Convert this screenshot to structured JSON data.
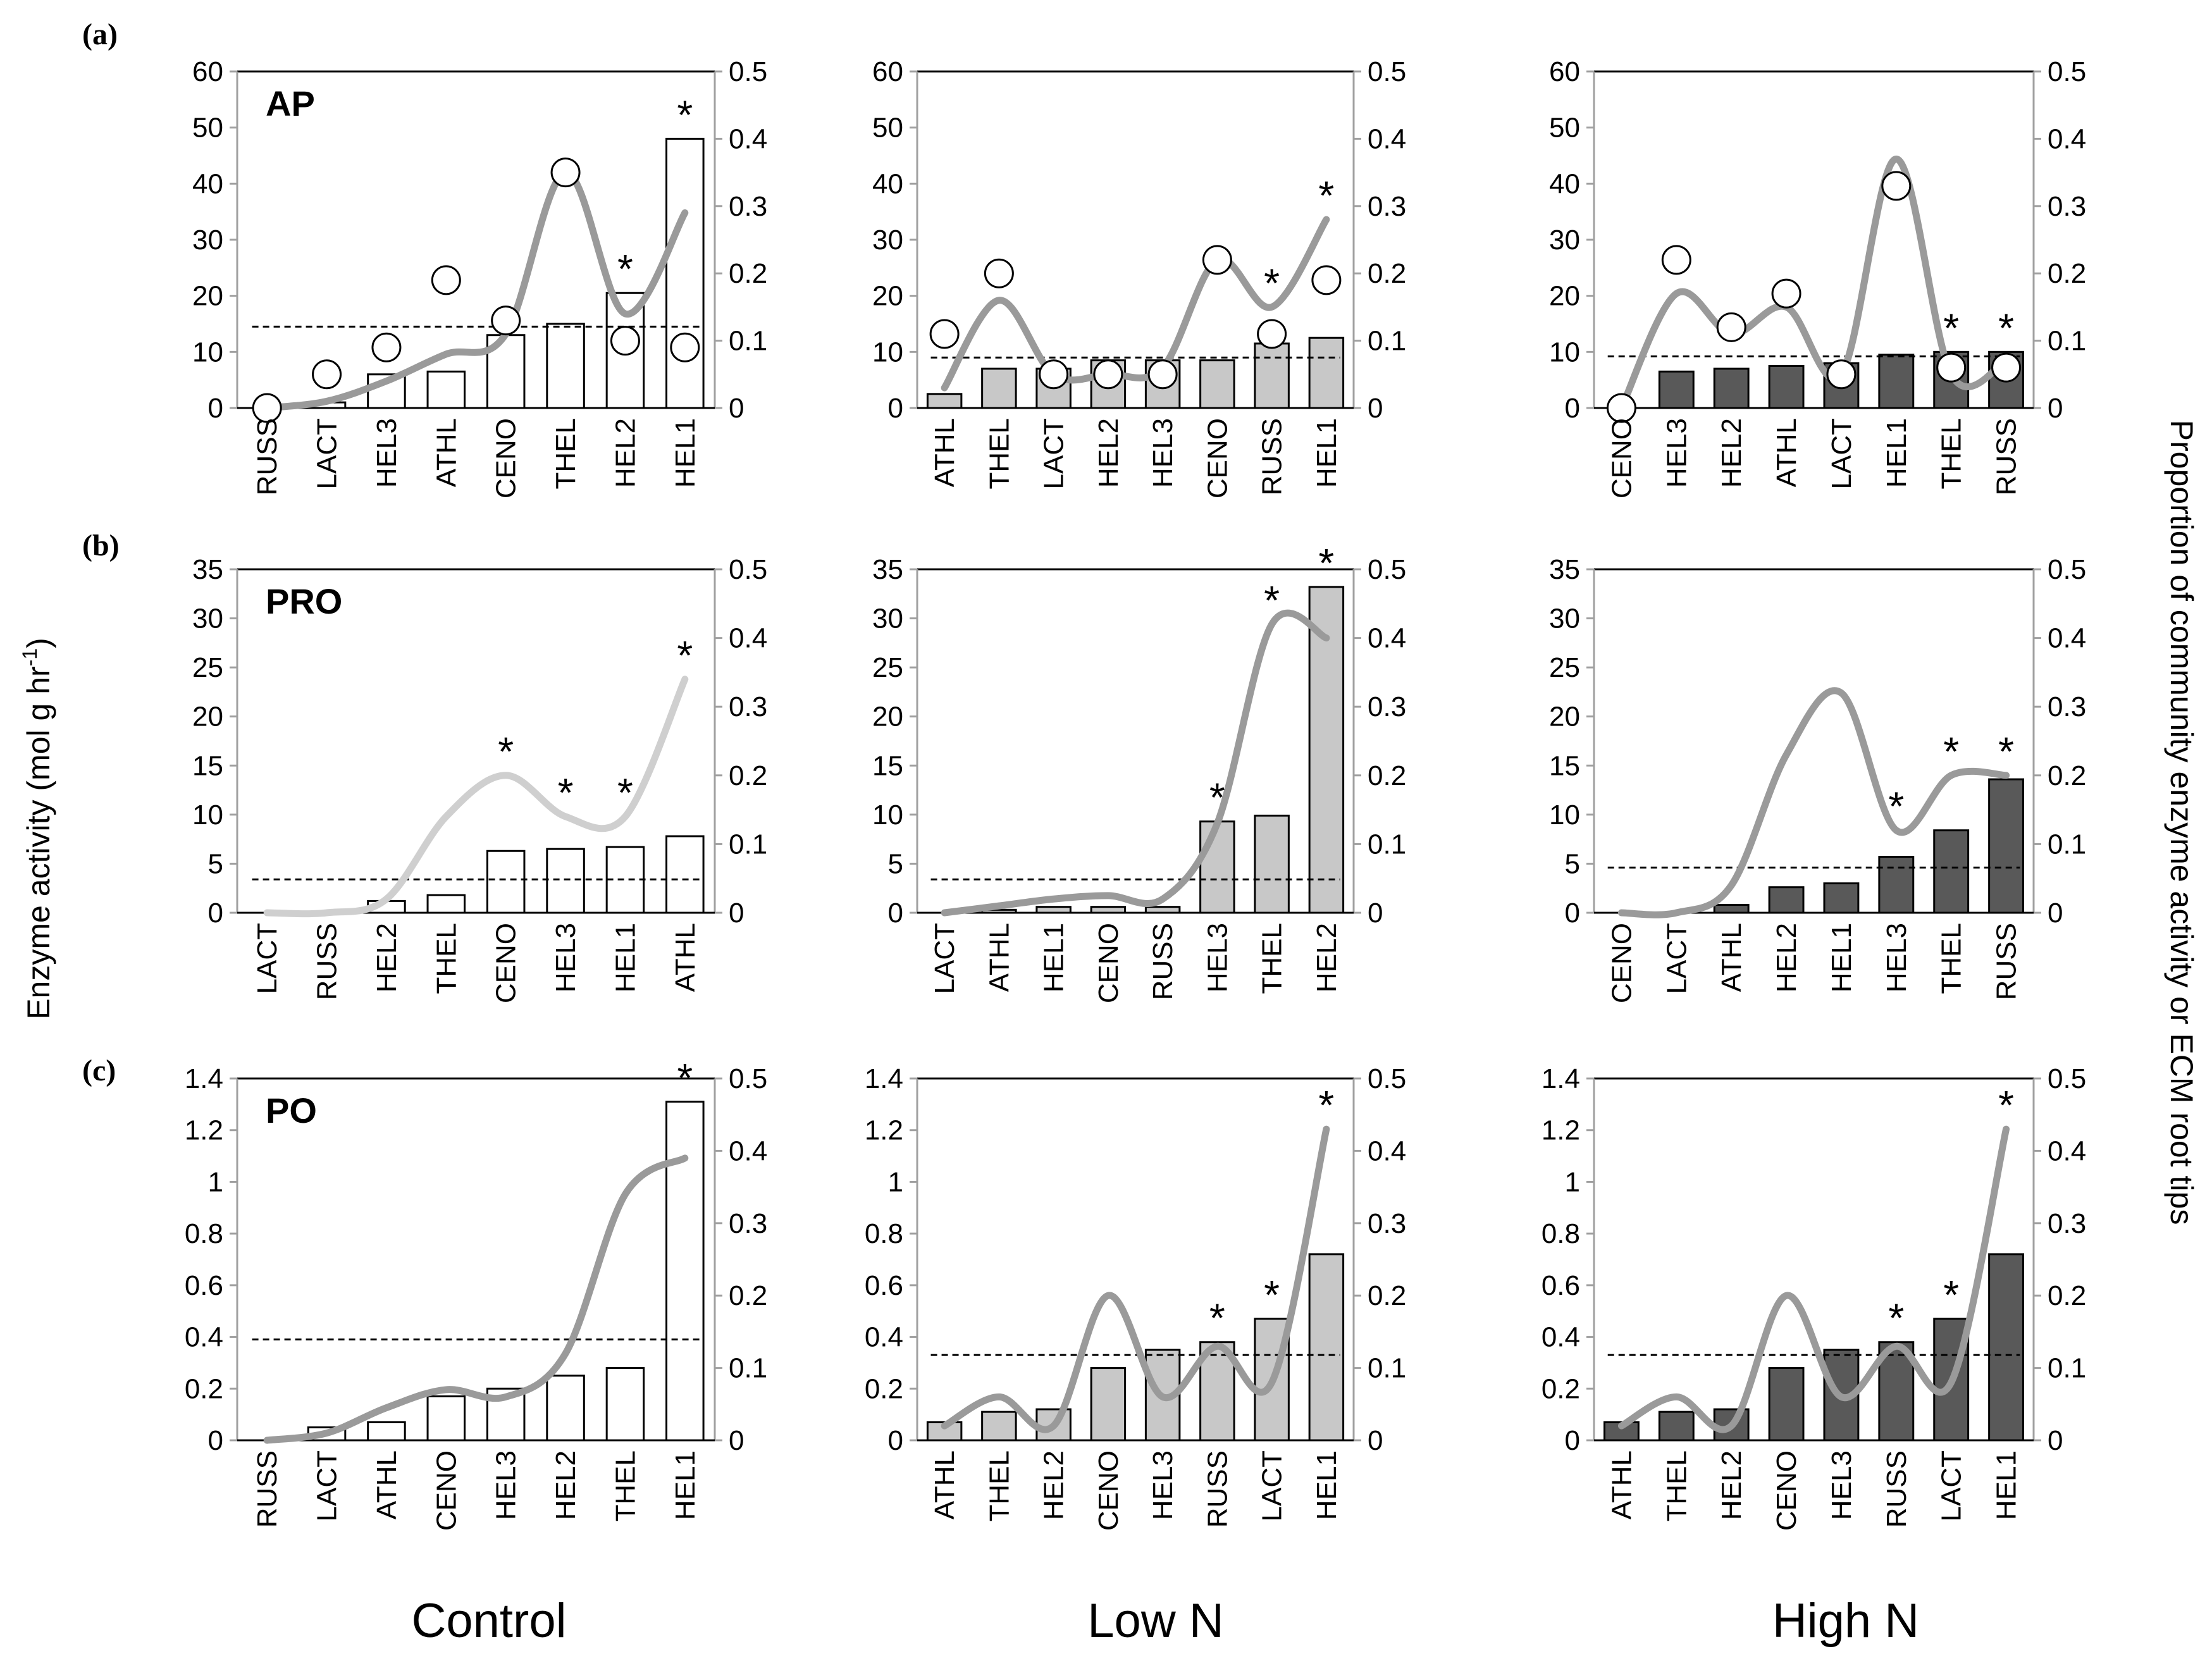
{
  "figure": {
    "y_left_label": "Enzyme activity (mol g hr",
    "y_left_label_sup": "-1",
    "y_left_label_end": ")",
    "y_right_label": "Proportion of community enzyme activity or ECM root tips",
    "columns": [
      "Control",
      "Low N",
      "High N"
    ],
    "row_labels": [
      "(a)",
      "(b)",
      "(c)"
    ],
    "significance_marker": "*"
  },
  "colors": {
    "control_bar": "#ffffff",
    "lowN_bar": "#c8c8c8",
    "highN_bar": "#595959",
    "curve": "#9a9a9a",
    "curve_light": "#cfcfcf",
    "text": "#000000"
  },
  "chart_data": [
    {
      "id": "AP-Control",
      "type": "bar",
      "enzyme_label": "AP",
      "treatment": "Control",
      "categories": [
        "RUSS",
        "LACT",
        "HEL3",
        "ATHL",
        "CENO",
        "THEL",
        "HEL2",
        "HEL1"
      ],
      "values": [
        0,
        1,
        6,
        6.5,
        13,
        15,
        20.5,
        48
      ],
      "significant": [
        false,
        false,
        false,
        false,
        false,
        false,
        true,
        true
      ],
      "ylim": [
        0,
        60
      ],
      "yticks": [
        0,
        10,
        20,
        30,
        40,
        50,
        60
      ],
      "y2lim": [
        0,
        0.5
      ],
      "y2ticks": [
        0,
        0.1,
        0.2,
        0.3,
        0.4,
        0.5
      ],
      "mean_line": 14.5,
      "proportion_curve": [
        0,
        0.01,
        0.04,
        0.08,
        0.11,
        0.35,
        0.14,
        0.29
      ],
      "root_tip_points": [
        0,
        0.05,
        0.09,
        0.19,
        0.13,
        0.35,
        0.1,
        0.09
      ]
    },
    {
      "id": "AP-LowN",
      "type": "bar",
      "enzyme_label": "",
      "treatment": "Low N",
      "categories": [
        "ATHL",
        "THEL",
        "LACT",
        "HEL2",
        "HEL3",
        "CENO",
        "RUSS",
        "HEL1"
      ],
      "values": [
        2.5,
        7,
        7,
        8.5,
        8.5,
        8.5,
        11.5,
        12.5
      ],
      "significant": [
        false,
        false,
        false,
        false,
        false,
        false,
        true,
        true
      ],
      "ylim": [
        0,
        60
      ],
      "yticks": [
        0,
        10,
        20,
        30,
        40,
        50,
        60
      ],
      "y2lim": [
        0,
        0.5
      ],
      "y2ticks": [
        0,
        0.1,
        0.2,
        0.3,
        0.4,
        0.5
      ],
      "mean_line": 9,
      "proportion_curve": [
        0.03,
        0.16,
        0.05,
        0.05,
        0.06,
        0.22,
        0.15,
        0.28
      ],
      "root_tip_points": [
        0.11,
        0.2,
        0.05,
        0.05,
        0.05,
        0.22,
        0.11,
        0.19
      ]
    },
    {
      "id": "AP-HighN",
      "type": "bar",
      "enzyme_label": "",
      "treatment": "High N",
      "categories": [
        "CENO",
        "HEL3",
        "HEL2",
        "ATHL",
        "LACT",
        "HEL1",
        "THEL",
        "RUSS"
      ],
      "values": [
        0,
        6.5,
        7,
        7.5,
        8,
        9.5,
        10,
        10
      ],
      "significant": [
        false,
        false,
        false,
        false,
        false,
        false,
        true,
        true
      ],
      "ylim": [
        0,
        60
      ],
      "yticks": [
        0,
        10,
        20,
        30,
        40,
        50,
        60
      ],
      "y2lim": [
        0,
        0.5
      ],
      "y2ticks": [
        0,
        0.1,
        0.2,
        0.3,
        0.4,
        0.5
      ],
      "mean_line": 9.2,
      "proportion_curve": [
        0,
        0.17,
        0.11,
        0.15,
        0.05,
        0.37,
        0.05,
        0.07
      ],
      "root_tip_points": [
        0,
        0.22,
        0.12,
        0.17,
        0.05,
        0.33,
        0.06,
        0.06
      ]
    },
    {
      "id": "PRO-Control",
      "type": "bar",
      "enzyme_label": "PRO",
      "treatment": "Control",
      "categories": [
        "LACT",
        "RUSS",
        "HEL2",
        "THEL",
        "CENO",
        "HEL3",
        "HEL1",
        "ATHL"
      ],
      "values": [
        0,
        0,
        1.2,
        1.8,
        6.3,
        6.5,
        6.7,
        7.8
      ],
      "significant": [
        false,
        false,
        false,
        false,
        true,
        true,
        true,
        true
      ],
      "ylim": [
        0,
        35
      ],
      "yticks": [
        0,
        5,
        10,
        15,
        20,
        25,
        30,
        35
      ],
      "y2lim": [
        0,
        0.5
      ],
      "y2ticks": [
        0,
        0.1,
        0.2,
        0.3,
        0.4,
        0.5
      ],
      "mean_line": 3.4,
      "proportion_curve": [
        0,
        0,
        0.02,
        0.14,
        0.2,
        0.14,
        0.14,
        0.34
      ],
      "root_tip_points": []
    },
    {
      "id": "PRO-LowN",
      "type": "bar",
      "enzyme_label": "",
      "treatment": "Low N",
      "categories": [
        "LACT",
        "ATHL",
        "HEL1",
        "CENO",
        "RUSS",
        "HEL3",
        "THEL",
        "HEL2"
      ],
      "values": [
        0,
        0.3,
        0.6,
        0.6,
        0.6,
        9.3,
        9.9,
        33.2
      ],
      "significant": [
        false,
        false,
        false,
        false,
        false,
        true,
        true,
        true
      ],
      "ylim": [
        0,
        35
      ],
      "yticks": [
        0,
        5,
        10,
        15,
        20,
        25,
        30,
        35
      ],
      "y2lim": [
        0,
        0.5
      ],
      "y2ticks": [
        0,
        0.1,
        0.2,
        0.3,
        0.4,
        0.5
      ],
      "mean_line": 3.4,
      "proportion_curve": [
        0,
        0.01,
        0.02,
        0.025,
        0.02,
        0.13,
        0.42,
        0.4
      ],
      "root_tip_points": []
    },
    {
      "id": "PRO-HighN",
      "type": "bar",
      "enzyme_label": "",
      "treatment": "High N",
      "categories": [
        "CENO",
        "LACT",
        "ATHL",
        "HEL2",
        "HEL1",
        "HEL3",
        "THEL",
        "RUSS"
      ],
      "values": [
        0,
        0,
        0.8,
        2.6,
        3.0,
        5.7,
        8.4,
        13.6
      ],
      "significant": [
        false,
        false,
        false,
        false,
        false,
        true,
        true,
        true
      ],
      "ylim": [
        0,
        35
      ],
      "yticks": [
        0,
        5,
        10,
        15,
        20,
        25,
        30,
        35
      ],
      "y2lim": [
        0,
        0.5
      ],
      "y2ticks": [
        0,
        0.1,
        0.2,
        0.3,
        0.4,
        0.5
      ],
      "mean_line": 4.6,
      "proportion_curve": [
        0,
        0,
        0.04,
        0.23,
        0.32,
        0.12,
        0.2,
        0.2
      ],
      "root_tip_points": []
    },
    {
      "id": "PO-Control",
      "type": "bar",
      "enzyme_label": "PO",
      "treatment": "Control",
      "categories": [
        "RUSS",
        "LACT",
        "ATHL",
        "CENO",
        "HEL3",
        "HEL2",
        "THEL",
        "HEL1"
      ],
      "values": [
        0,
        0.05,
        0.07,
        0.17,
        0.2,
        0.25,
        0.28,
        1.31
      ],
      "significant": [
        false,
        false,
        false,
        false,
        false,
        false,
        false,
        true
      ],
      "ylim": [
        0,
        1.4
      ],
      "yticks": [
        0,
        0.2,
        0.4,
        0.6,
        0.8,
        1,
        1.2,
        1.4
      ],
      "y2lim": [
        0,
        0.5
      ],
      "y2ticks": [
        0,
        0.1,
        0.2,
        0.3,
        0.4,
        0.5
      ],
      "mean_line": 0.39,
      "proportion_curve": [
        0,
        0.01,
        0.045,
        0.07,
        0.06,
        0.12,
        0.34,
        0.39
      ],
      "root_tip_points": []
    },
    {
      "id": "PO-LowN",
      "type": "bar",
      "enzyme_label": "",
      "treatment": "Low N",
      "categories": [
        "ATHL",
        "THEL",
        "HEL2",
        "CENO",
        "HEL3",
        "RUSS",
        "LACT",
        "HEL1"
      ],
      "values": [
        0.07,
        0.11,
        0.12,
        0.28,
        0.35,
        0.38,
        0.47,
        0.72
      ],
      "significant": [
        false,
        false,
        false,
        false,
        false,
        true,
        true,
        true
      ],
      "ylim": [
        0,
        1.4
      ],
      "yticks": [
        0,
        0.2,
        0.4,
        0.6,
        0.8,
        1,
        1.2,
        1.4
      ],
      "y2lim": [
        0,
        0.5
      ],
      "y2ticks": [
        0,
        0.1,
        0.2,
        0.3,
        0.4,
        0.5
      ],
      "mean_line": 0.33,
      "proportion_curve": [
        0.02,
        0.06,
        0.02,
        0.2,
        0.06,
        0.13,
        0.08,
        0.43
      ],
      "root_tip_points": []
    },
    {
      "id": "PO-HighN",
      "type": "bar",
      "enzyme_label": "",
      "treatment": "High N",
      "categories": [
        "ATHL",
        "THEL",
        "HEL2",
        "CENO",
        "HEL3",
        "RUSS",
        "LACT",
        "HEL1"
      ],
      "values": [
        0.07,
        0.11,
        0.12,
        0.28,
        0.35,
        0.38,
        0.47,
        0.72
      ],
      "significant": [
        false,
        false,
        false,
        false,
        false,
        true,
        true,
        true
      ],
      "ylim": [
        0,
        1.4
      ],
      "yticks": [
        0,
        0.2,
        0.4,
        0.6,
        0.8,
        1,
        1.2,
        1.4
      ],
      "y2lim": [
        0,
        0.5
      ],
      "y2ticks": [
        0,
        0.1,
        0.2,
        0.3,
        0.4,
        0.5
      ],
      "mean_line": 0.33,
      "proportion_curve": [
        0.02,
        0.06,
        0.02,
        0.2,
        0.06,
        0.13,
        0.08,
        0.43
      ],
      "root_tip_points": []
    }
  ]
}
